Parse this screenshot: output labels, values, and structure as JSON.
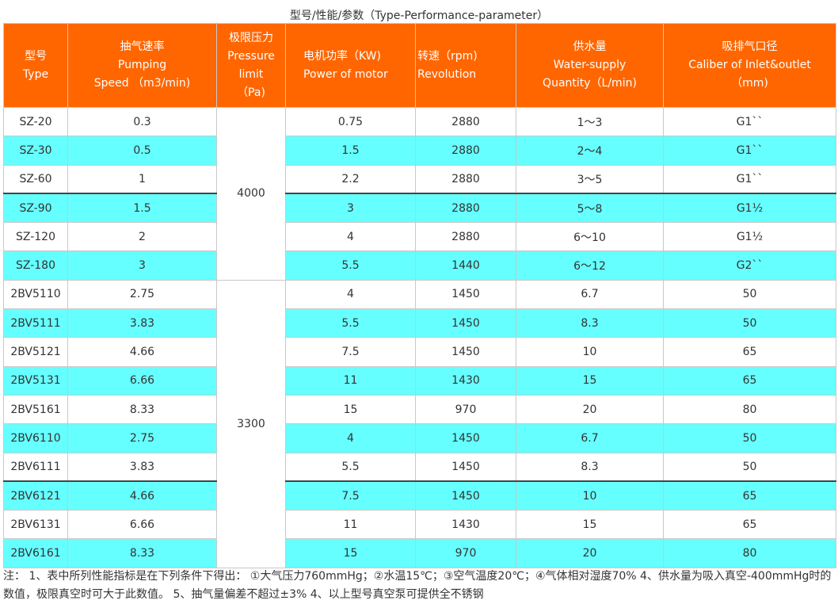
{
  "caption": "型号/性能/参数（Type-Performance-parameter）",
  "headers": [
    [
      "型号",
      "Type"
    ],
    [
      "抽气速率",
      "Pumping",
      "Speed （m3/min)"
    ],
    [
      "极限压力",
      "Pressure",
      "limit",
      "（Pa)"
    ],
    [
      "电机功率（KW)",
      "Power of motor"
    ],
    [
      "转速（rpm)",
      "Revolution"
    ],
    [
      "供水量",
      "Water-supply",
      "Quantity（L/min)"
    ],
    [
      "吸排气口径",
      "Caliber of Inlet&outlet",
      "（mm)"
    ]
  ],
  "pressure_groups": [
    {
      "value": "4000",
      "rows": 6
    },
    {
      "value": "3300",
      "rows": 10
    }
  ],
  "rows": [
    {
      "type": "SZ-20",
      "speed": "0.3",
      "power": "0.75",
      "rpm": "2880",
      "water": "1～3",
      "caliber": "G1``"
    },
    {
      "type": "SZ-30",
      "speed": "0.5",
      "power": "1.5",
      "rpm": "2880",
      "water": "2～4",
      "caliber": "G1``"
    },
    {
      "type": "SZ-60",
      "speed": "1",
      "power": "2.2",
      "rpm": "2880",
      "water": "3～5",
      "caliber": "G1``"
    },
    {
      "type": "SZ-90",
      "speed": "1.5",
      "power": "3",
      "rpm": "2880",
      "water": "5～8",
      "caliber": "G1½"
    },
    {
      "type": "SZ-120",
      "speed": "2",
      "power": "4",
      "rpm": "2880",
      "water": "6～10",
      "caliber": "G1½"
    },
    {
      "type": "SZ-180",
      "speed": "3",
      "power": "5.5",
      "rpm": "1440",
      "water": "6～12",
      "caliber": "G2``"
    },
    {
      "type": "2BV5110",
      "speed": "2.75",
      "power": "4",
      "rpm": "1450",
      "water": "6.7",
      "caliber": "50"
    },
    {
      "type": "2BV5111",
      "speed": "3.83",
      "power": "5.5",
      "rpm": "1450",
      "water": "8.3",
      "caliber": "50"
    },
    {
      "type": "2BV5121",
      "speed": "4.66",
      "power": "7.5",
      "rpm": "1450",
      "water": "10",
      "caliber": "65"
    },
    {
      "type": "2BV5131",
      "speed": "6.66",
      "power": "11",
      "rpm": "1430",
      "water": "15",
      "caliber": "65"
    },
    {
      "type": "2BV5161",
      "speed": "8.33",
      "power": "15",
      "rpm": "970",
      "water": "20",
      "caliber": "80"
    },
    {
      "type": "2BV6110",
      "speed": "2.75",
      "power": "4",
      "rpm": "1450",
      "water": "6.7",
      "caliber": "50"
    },
    {
      "type": "2BV6111",
      "speed": "3.83",
      "power": "5.5",
      "rpm": "1450",
      "water": "8.3",
      "caliber": "50"
    },
    {
      "type": "2BV6121",
      "speed": "4.66",
      "power": "7.5",
      "rpm": "1450",
      "water": "10",
      "caliber": "65"
    },
    {
      "type": "2BV6131",
      "speed": "6.66",
      "power": "11",
      "rpm": "1430",
      "water": "15",
      "caliber": "65"
    },
    {
      "type": "2BV6161",
      "speed": "8.33",
      "power": "15",
      "rpm": "970",
      "water": "20",
      "caliber": "80"
    }
  ],
  "note": "注： 1、表中所列性能指标是在下列条件下得出： ①大气压力760mmHg；②水温15℃；③空气温度20℃；④气体相对湿度70% 4、供水量为吸入真空-400mmHg时的数值，极限真空时可大于此数值。 5、抽气量偏差不超过±3% 4、以上型号真空泵可提供全不锈钢",
  "colors": {
    "header_bg": "#ff6600",
    "header_text": "#ffffff",
    "stripe": "#66ffff"
  }
}
